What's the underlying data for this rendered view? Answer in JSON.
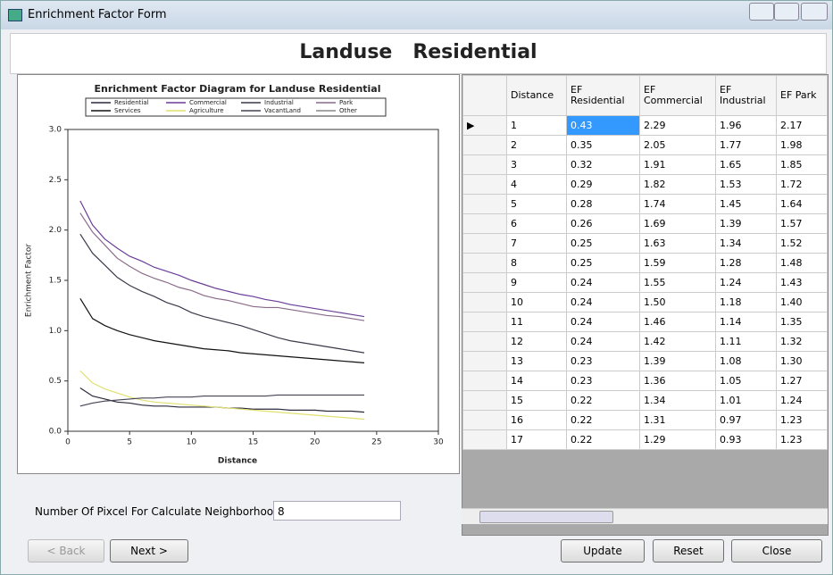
{
  "window": {
    "title": "Enrichment Factor Form"
  },
  "header": {
    "title": "Landuse   Residential"
  },
  "chart_data": {
    "type": "line",
    "title": "Enrichment Factor Diagram for Landuse Residential",
    "x_label": "Distance",
    "y_label": "Enrichment Factor",
    "x": [
      1,
      2,
      3,
      4,
      5,
      6,
      7,
      8,
      9,
      10,
      11,
      12,
      13,
      14,
      15,
      16,
      17,
      18,
      19,
      20,
      21,
      22,
      23,
      24
    ],
    "series": [
      {
        "name": "Residential",
        "color": "#2a2a3a",
        "values": [
          0.43,
          0.35,
          0.32,
          0.29,
          0.28,
          0.26,
          0.25,
          0.25,
          0.24,
          0.24,
          0.24,
          0.24,
          0.23,
          0.23,
          0.22,
          0.22,
          0.22,
          0.21,
          0.21,
          0.21,
          0.2,
          0.2,
          0.2,
          0.19
        ]
      },
      {
        "name": "Commercial",
        "color": "#6a3d9a",
        "values": [
          2.29,
          2.05,
          1.91,
          1.82,
          1.74,
          1.69,
          1.63,
          1.59,
          1.55,
          1.5,
          1.46,
          1.42,
          1.39,
          1.36,
          1.34,
          1.31,
          1.29,
          1.26,
          1.24,
          1.22,
          1.2,
          1.18,
          1.16,
          1.14
        ]
      },
      {
        "name": "Industrial",
        "color": "#3a3a4a",
        "values": [
          1.96,
          1.77,
          1.65,
          1.53,
          1.45,
          1.39,
          1.34,
          1.28,
          1.24,
          1.18,
          1.14,
          1.11,
          1.08,
          1.05,
          1.01,
          0.97,
          0.93,
          0.9,
          0.88,
          0.86,
          0.84,
          0.82,
          0.8,
          0.78
        ]
      },
      {
        "name": "Park",
        "color": "#8a6a8a",
        "values": [
          2.17,
          1.98,
          1.85,
          1.72,
          1.64,
          1.57,
          1.52,
          1.48,
          1.43,
          1.4,
          1.35,
          1.32,
          1.3,
          1.27,
          1.24,
          1.23,
          1.23,
          1.21,
          1.19,
          1.17,
          1.15,
          1.14,
          1.12,
          1.1
        ]
      },
      {
        "name": "Services",
        "color": "#111111",
        "values": [
          1.32,
          1.12,
          1.05,
          1.0,
          0.96,
          0.93,
          0.9,
          0.88,
          0.86,
          0.84,
          0.82,
          0.81,
          0.8,
          0.78,
          0.77,
          0.76,
          0.75,
          0.74,
          0.73,
          0.72,
          0.71,
          0.7,
          0.69,
          0.68
        ]
      },
      {
        "name": "Agriculture",
        "color": "#e0e070",
        "values": [
          0.6,
          0.48,
          0.42,
          0.38,
          0.34,
          0.31,
          0.29,
          0.28,
          0.27,
          0.26,
          0.25,
          0.24,
          0.23,
          0.22,
          0.21,
          0.2,
          0.19,
          0.18,
          0.17,
          0.16,
          0.15,
          0.14,
          0.13,
          0.12
        ]
      },
      {
        "name": "VacantLand",
        "color": "#444455",
        "values": [
          0.25,
          0.28,
          0.3,
          0.31,
          0.32,
          0.33,
          0.33,
          0.34,
          0.34,
          0.34,
          0.35,
          0.35,
          0.35,
          0.35,
          0.35,
          0.35,
          0.36,
          0.36,
          0.36,
          0.36,
          0.36,
          0.36,
          0.36,
          0.36
        ]
      },
      {
        "name": "Other",
        "color": "#888888",
        "values": [
          null,
          null,
          null,
          null,
          null,
          null,
          null,
          null,
          null,
          null,
          null,
          null,
          null,
          null,
          null,
          null,
          null,
          null,
          null,
          null,
          null,
          null,
          null,
          null
        ]
      }
    ],
    "xlim": [
      0,
      30
    ],
    "xticks": [
      0,
      5,
      10,
      15,
      20,
      25,
      30
    ],
    "ylim": [
      0,
      3
    ],
    "yticks": [
      {
        "value": 0,
        "label": "0.0"
      },
      0.5,
      {
        "value": 1,
        "label": "1.0"
      },
      1.5,
      {
        "value": 2,
        "label": "2.0"
      },
      2.5,
      {
        "value": 3,
        "label": "3.0"
      }
    ]
  },
  "neighborhood": {
    "label": "Number Of Pixcel For Calculate Neighborhood",
    "value": "8"
  },
  "table": {
    "columns": [
      "Distance",
      "EF Residential",
      "EF Commercial",
      "EF Industrial",
      "EF Park"
    ],
    "rows": [
      [
        "1",
        "0.43",
        "2.29",
        "1.96",
        "2.17"
      ],
      [
        "2",
        "0.35",
        "2.05",
        "1.77",
        "1.98"
      ],
      [
        "3",
        "0.32",
        "1.91",
        "1.65",
        "1.85"
      ],
      [
        "4",
        "0.29",
        "1.82",
        "1.53",
        "1.72"
      ],
      [
        "5",
        "0.28",
        "1.74",
        "1.45",
        "1.64"
      ],
      [
        "6",
        "0.26",
        "1.69",
        "1.39",
        "1.57"
      ],
      [
        "7",
        "0.25",
        "1.63",
        "1.34",
        "1.52"
      ],
      [
        "8",
        "0.25",
        "1.59",
        "1.28",
        "1.48"
      ],
      [
        "9",
        "0.24",
        "1.55",
        "1.24",
        "1.43"
      ],
      [
        "10",
        "0.24",
        "1.50",
        "1.18",
        "1.40"
      ],
      [
        "11",
        "0.24",
        "1.46",
        "1.14",
        "1.35"
      ],
      [
        "12",
        "0.24",
        "1.42",
        "1.11",
        "1.32"
      ],
      [
        "13",
        "0.23",
        "1.39",
        "1.08",
        "1.30"
      ],
      [
        "14",
        "0.23",
        "1.36",
        "1.05",
        "1.27"
      ],
      [
        "15",
        "0.22",
        "1.34",
        "1.01",
        "1.24"
      ],
      [
        "16",
        "0.22",
        "1.31",
        "0.97",
        "1.23"
      ],
      [
        "17",
        "0.22",
        "1.29",
        "0.93",
        "1.23"
      ]
    ]
  },
  "buttons": {
    "back": "< Back",
    "next": "Next >",
    "update": "Update",
    "reset": "Reset",
    "close": "Close"
  }
}
